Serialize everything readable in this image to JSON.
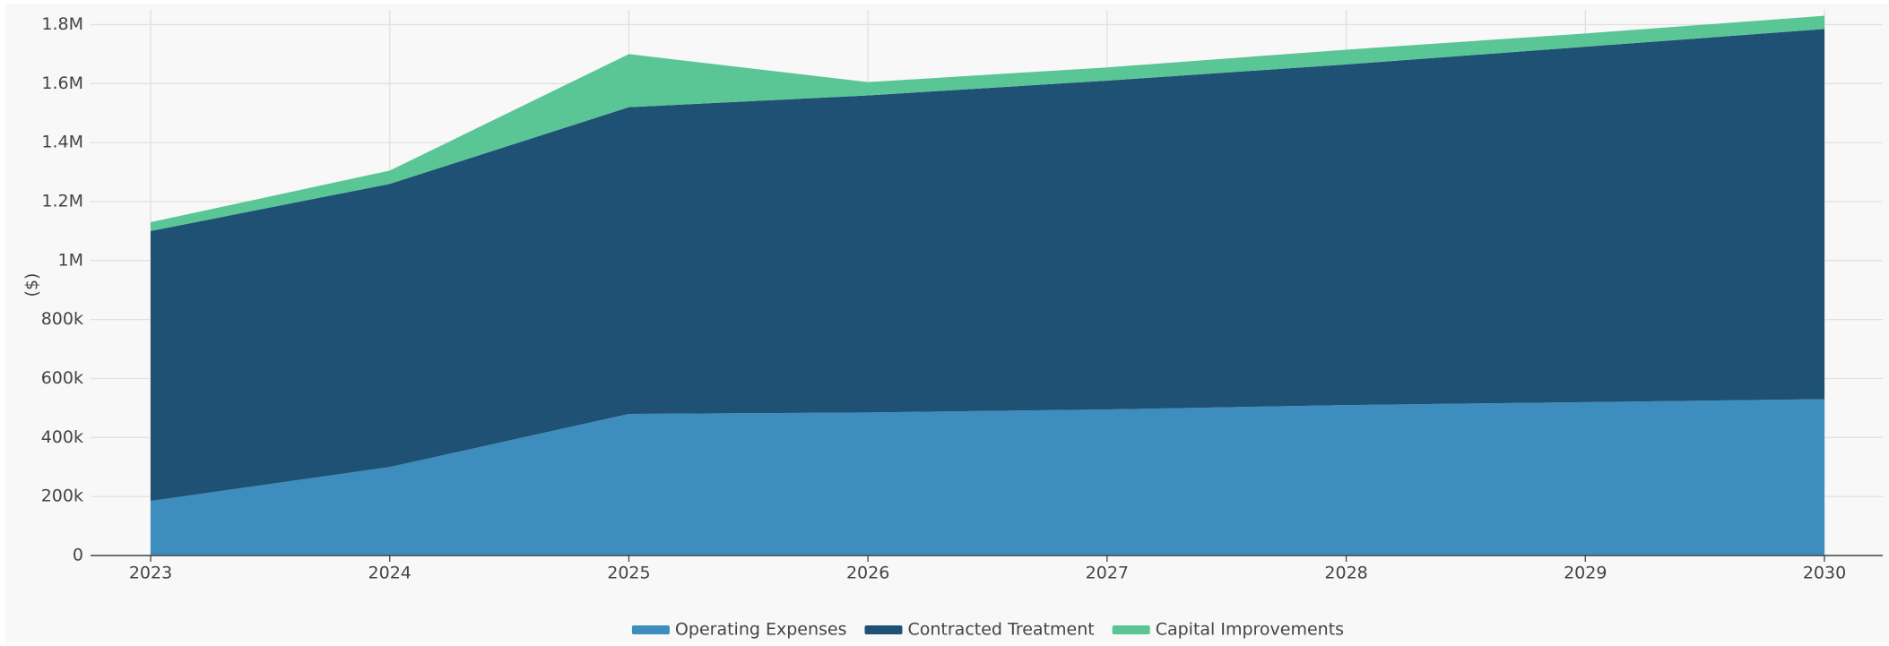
{
  "chart_data": {
    "type": "stacked-area",
    "y_label": "($)",
    "categories": [
      "2023",
      "2024",
      "2025",
      "2026",
      "2027",
      "2028",
      "2029",
      "2030"
    ],
    "series": [
      {
        "name": "Operating Expenses",
        "color": "#3d8ebf",
        "values": [
          185000,
          300000,
          480000,
          485000,
          495000,
          510000,
          520000,
          530000
        ]
      },
      {
        "name": "Contracted Treatment",
        "color": "#1f5175",
        "values": [
          915000,
          960000,
          1040000,
          1075000,
          1115000,
          1155000,
          1205000,
          1255000
        ]
      },
      {
        "name": "Capital Improvements",
        "color": "#5ac595",
        "values": [
          30000,
          45000,
          180000,
          45000,
          45000,
          50000,
          45000,
          45000
        ]
      }
    ],
    "ylim": [
      0,
      1850000
    ],
    "yticks": [
      0,
      {
        "value": 200000,
        "label": "200k"
      },
      {
        "value": 400000,
        "label": "400k"
      },
      {
        "value": 600000,
        "label": "600k"
      },
      {
        "value": 800000,
        "label": "800k"
      },
      {
        "value": 1000000,
        "label": "1M"
      },
      {
        "value": 1200000,
        "label": "1.2M"
      },
      {
        "value": 1400000,
        "label": "1.4M"
      },
      {
        "value": 1600000,
        "label": "1.6M"
      },
      {
        "value": 1800000,
        "label": "1.8M"
      }
    ],
    "grid": true,
    "legend": "bottom"
  }
}
